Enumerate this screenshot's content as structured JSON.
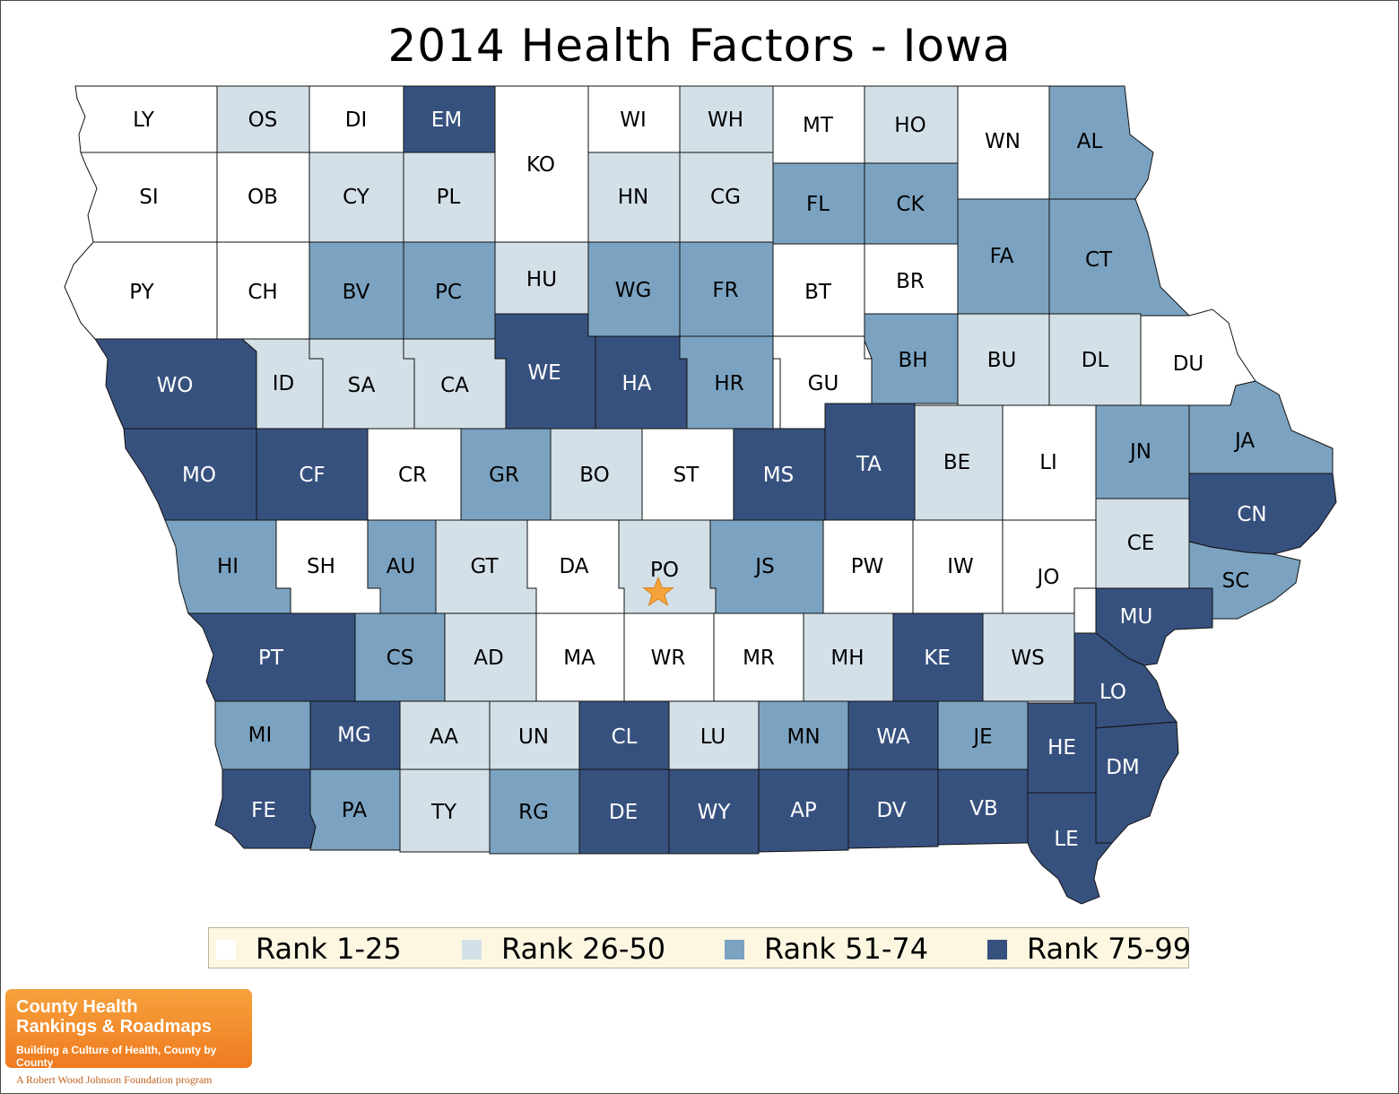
{
  "title": "2014 Health Factors - Iowa",
  "legend": [
    {
      "label": "Rank 1-25",
      "tier": "t1"
    },
    {
      "label": "Rank 26-50",
      "tier": "t2"
    },
    {
      "label": "Rank 51-74",
      "tier": "t3"
    },
    {
      "label": "Rank 75-99",
      "tier": "t4"
    }
  ],
  "colors": {
    "t1": "#ffffff",
    "t2": "#d3e0e8",
    "t3": "#7ba3c1",
    "t4": "#37517f",
    "star": "#f5a33b"
  },
  "highlight_county": "PO",
  "counties": [
    {
      "code": "LY",
      "tier": "t1"
    },
    {
      "code": "OS",
      "tier": "t2"
    },
    {
      "code": "DI",
      "tier": "t1"
    },
    {
      "code": "EM",
      "tier": "t4"
    },
    {
      "code": "KO",
      "tier": "t1"
    },
    {
      "code": "WI",
      "tier": "t1"
    },
    {
      "code": "WH",
      "tier": "t2"
    },
    {
      "code": "MT",
      "tier": "t1"
    },
    {
      "code": "HO",
      "tier": "t2"
    },
    {
      "code": "WN",
      "tier": "t1"
    },
    {
      "code": "AL",
      "tier": "t3"
    },
    {
      "code": "SI",
      "tier": "t1"
    },
    {
      "code": "OB",
      "tier": "t1"
    },
    {
      "code": "CY",
      "tier": "t2"
    },
    {
      "code": "PL",
      "tier": "t2"
    },
    {
      "code": "HN",
      "tier": "t2"
    },
    {
      "code": "CG",
      "tier": "t2"
    },
    {
      "code": "FL",
      "tier": "t3"
    },
    {
      "code": "CK",
      "tier": "t3"
    },
    {
      "code": "FA",
      "tier": "t3"
    },
    {
      "code": "CT",
      "tier": "t3"
    },
    {
      "code": "PY",
      "tier": "t1"
    },
    {
      "code": "CH",
      "tier": "t1"
    },
    {
      "code": "BV",
      "tier": "t3"
    },
    {
      "code": "PC",
      "tier": "t3"
    },
    {
      "code": "HU",
      "tier": "t2"
    },
    {
      "code": "WG",
      "tier": "t3"
    },
    {
      "code": "FR",
      "tier": "t3"
    },
    {
      "code": "BT",
      "tier": "t1"
    },
    {
      "code": "BR",
      "tier": "t1"
    },
    {
      "code": "BH",
      "tier": "t3"
    },
    {
      "code": "BU",
      "tier": "t2"
    },
    {
      "code": "DL",
      "tier": "t2"
    },
    {
      "code": "DU",
      "tier": "t1"
    },
    {
      "code": "WO",
      "tier": "t4"
    },
    {
      "code": "ID",
      "tier": "t2"
    },
    {
      "code": "SA",
      "tier": "t2"
    },
    {
      "code": "CA",
      "tier": "t2"
    },
    {
      "code": "WE",
      "tier": "t4"
    },
    {
      "code": "HA",
      "tier": "t4"
    },
    {
      "code": "HR",
      "tier": "t3"
    },
    {
      "code": "GU",
      "tier": "t1"
    },
    {
      "code": "MO",
      "tier": "t4"
    },
    {
      "code": "CF",
      "tier": "t4"
    },
    {
      "code": "CR",
      "tier": "t1"
    },
    {
      "code": "GR",
      "tier": "t3"
    },
    {
      "code": "BO",
      "tier": "t2"
    },
    {
      "code": "ST",
      "tier": "t1"
    },
    {
      "code": "MS",
      "tier": "t4"
    },
    {
      "code": "TA",
      "tier": "t4"
    },
    {
      "code": "BE",
      "tier": "t2"
    },
    {
      "code": "LI",
      "tier": "t1"
    },
    {
      "code": "JN",
      "tier": "t3"
    },
    {
      "code": "JA",
      "tier": "t3"
    },
    {
      "code": "CN",
      "tier": "t4"
    },
    {
      "code": "CE",
      "tier": "t2"
    },
    {
      "code": "HI",
      "tier": "t3"
    },
    {
      "code": "SH",
      "tier": "t1"
    },
    {
      "code": "AU",
      "tier": "t3"
    },
    {
      "code": "GT",
      "tier": "t2"
    },
    {
      "code": "DA",
      "tier": "t1"
    },
    {
      "code": "PO",
      "tier": "t2"
    },
    {
      "code": "JS",
      "tier": "t3"
    },
    {
      "code": "PW",
      "tier": "t1"
    },
    {
      "code": "IW",
      "tier": "t1"
    },
    {
      "code": "JO",
      "tier": "t1"
    },
    {
      "code": "SC",
      "tier": "t3"
    },
    {
      "code": "MU",
      "tier": "t4"
    },
    {
      "code": "PT",
      "tier": "t4"
    },
    {
      "code": "CS",
      "tier": "t3"
    },
    {
      "code": "AD",
      "tier": "t2"
    },
    {
      "code": "MA",
      "tier": "t1"
    },
    {
      "code": "WR",
      "tier": "t1"
    },
    {
      "code": "MR",
      "tier": "t1"
    },
    {
      "code": "MH",
      "tier": "t2"
    },
    {
      "code": "KE",
      "tier": "t4"
    },
    {
      "code": "WS",
      "tier": "t2"
    },
    {
      "code": "LO",
      "tier": "t4"
    },
    {
      "code": "MI",
      "tier": "t3"
    },
    {
      "code": "MG",
      "tier": "t4"
    },
    {
      "code": "AA",
      "tier": "t2"
    },
    {
      "code": "UN",
      "tier": "t2"
    },
    {
      "code": "CL",
      "tier": "t4"
    },
    {
      "code": "LU",
      "tier": "t2"
    },
    {
      "code": "MN",
      "tier": "t3"
    },
    {
      "code": "WA",
      "tier": "t4"
    },
    {
      "code": "JE",
      "tier": "t3"
    },
    {
      "code": "HE",
      "tier": "t4"
    },
    {
      "code": "DM",
      "tier": "t4"
    },
    {
      "code": "FE",
      "tier": "t4"
    },
    {
      "code": "PA",
      "tier": "t3"
    },
    {
      "code": "TY",
      "tier": "t2"
    },
    {
      "code": "RG",
      "tier": "t3"
    },
    {
      "code": "DE",
      "tier": "t4"
    },
    {
      "code": "WY",
      "tier": "t4"
    },
    {
      "code": "AP",
      "tier": "t4"
    },
    {
      "code": "DV",
      "tier": "t4"
    },
    {
      "code": "VB",
      "tier": "t4"
    },
    {
      "code": "LE",
      "tier": "t4"
    }
  ],
  "logo": {
    "line1": "County Health",
    "line2": "Rankings & Roadmaps",
    "tagline": "Building a Culture of Health, County by County"
  },
  "footer": "A Robert Wood Johnson Foundation program"
}
